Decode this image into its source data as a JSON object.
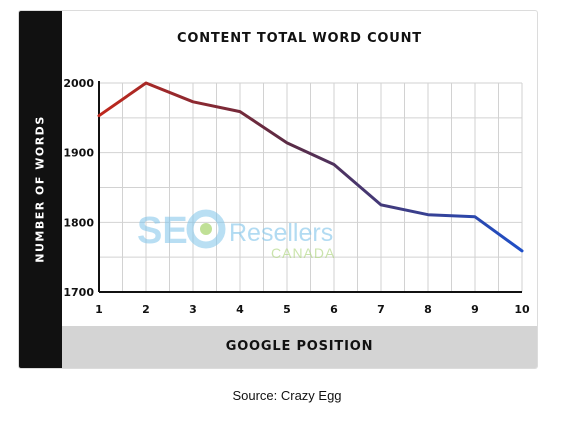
{
  "caption": "Source: Crazy Egg",
  "watermark": {
    "brand": "SEO Resellers",
    "sub": "CANADA"
  },
  "chart_data": {
    "type": "line",
    "title": "CONTENT TOTAL WORD COUNT",
    "xlabel": "GOOGLE POSITION",
    "ylabel": "NUMBER OF WORDS",
    "x": [
      1,
      2,
      3,
      4,
      5,
      6,
      7,
      8,
      9,
      10
    ],
    "y": [
      1953,
      2000,
      1973,
      1959,
      1914,
      1883,
      1825,
      1811,
      1808,
      1759
    ],
    "yticks": [
      1700,
      1800,
      1900,
      2000
    ],
    "ylim": [
      1700,
      2000
    ],
    "grid": true,
    "colors": {
      "start": "#c0271c",
      "mid": "#5a2b45",
      "end": "#1f4fc8"
    }
  }
}
